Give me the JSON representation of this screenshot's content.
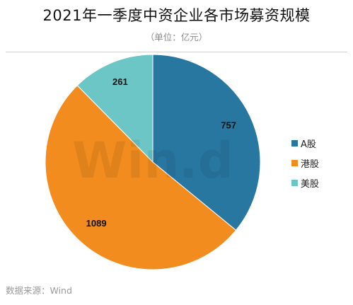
{
  "title": "2021年一季度中资企业各市场募资规模",
  "subtitle": "（单位：亿元）",
  "source": "数据来源：Wind",
  "watermark": "Win.d",
  "chart_data": {
    "type": "pie",
    "title": "2021年一季度中资企业各市场募资规模",
    "unit": "亿元",
    "categories": [
      "A股",
      "港股",
      "美股"
    ],
    "values": [
      757,
      1089,
      261
    ],
    "colors": [
      "#2877a1",
      "#f28c1f",
      "#6cc6c6"
    ],
    "start_angle": "12 o'clock",
    "direction": "clockwise",
    "legend_position": "right",
    "show_data_labels": true
  }
}
